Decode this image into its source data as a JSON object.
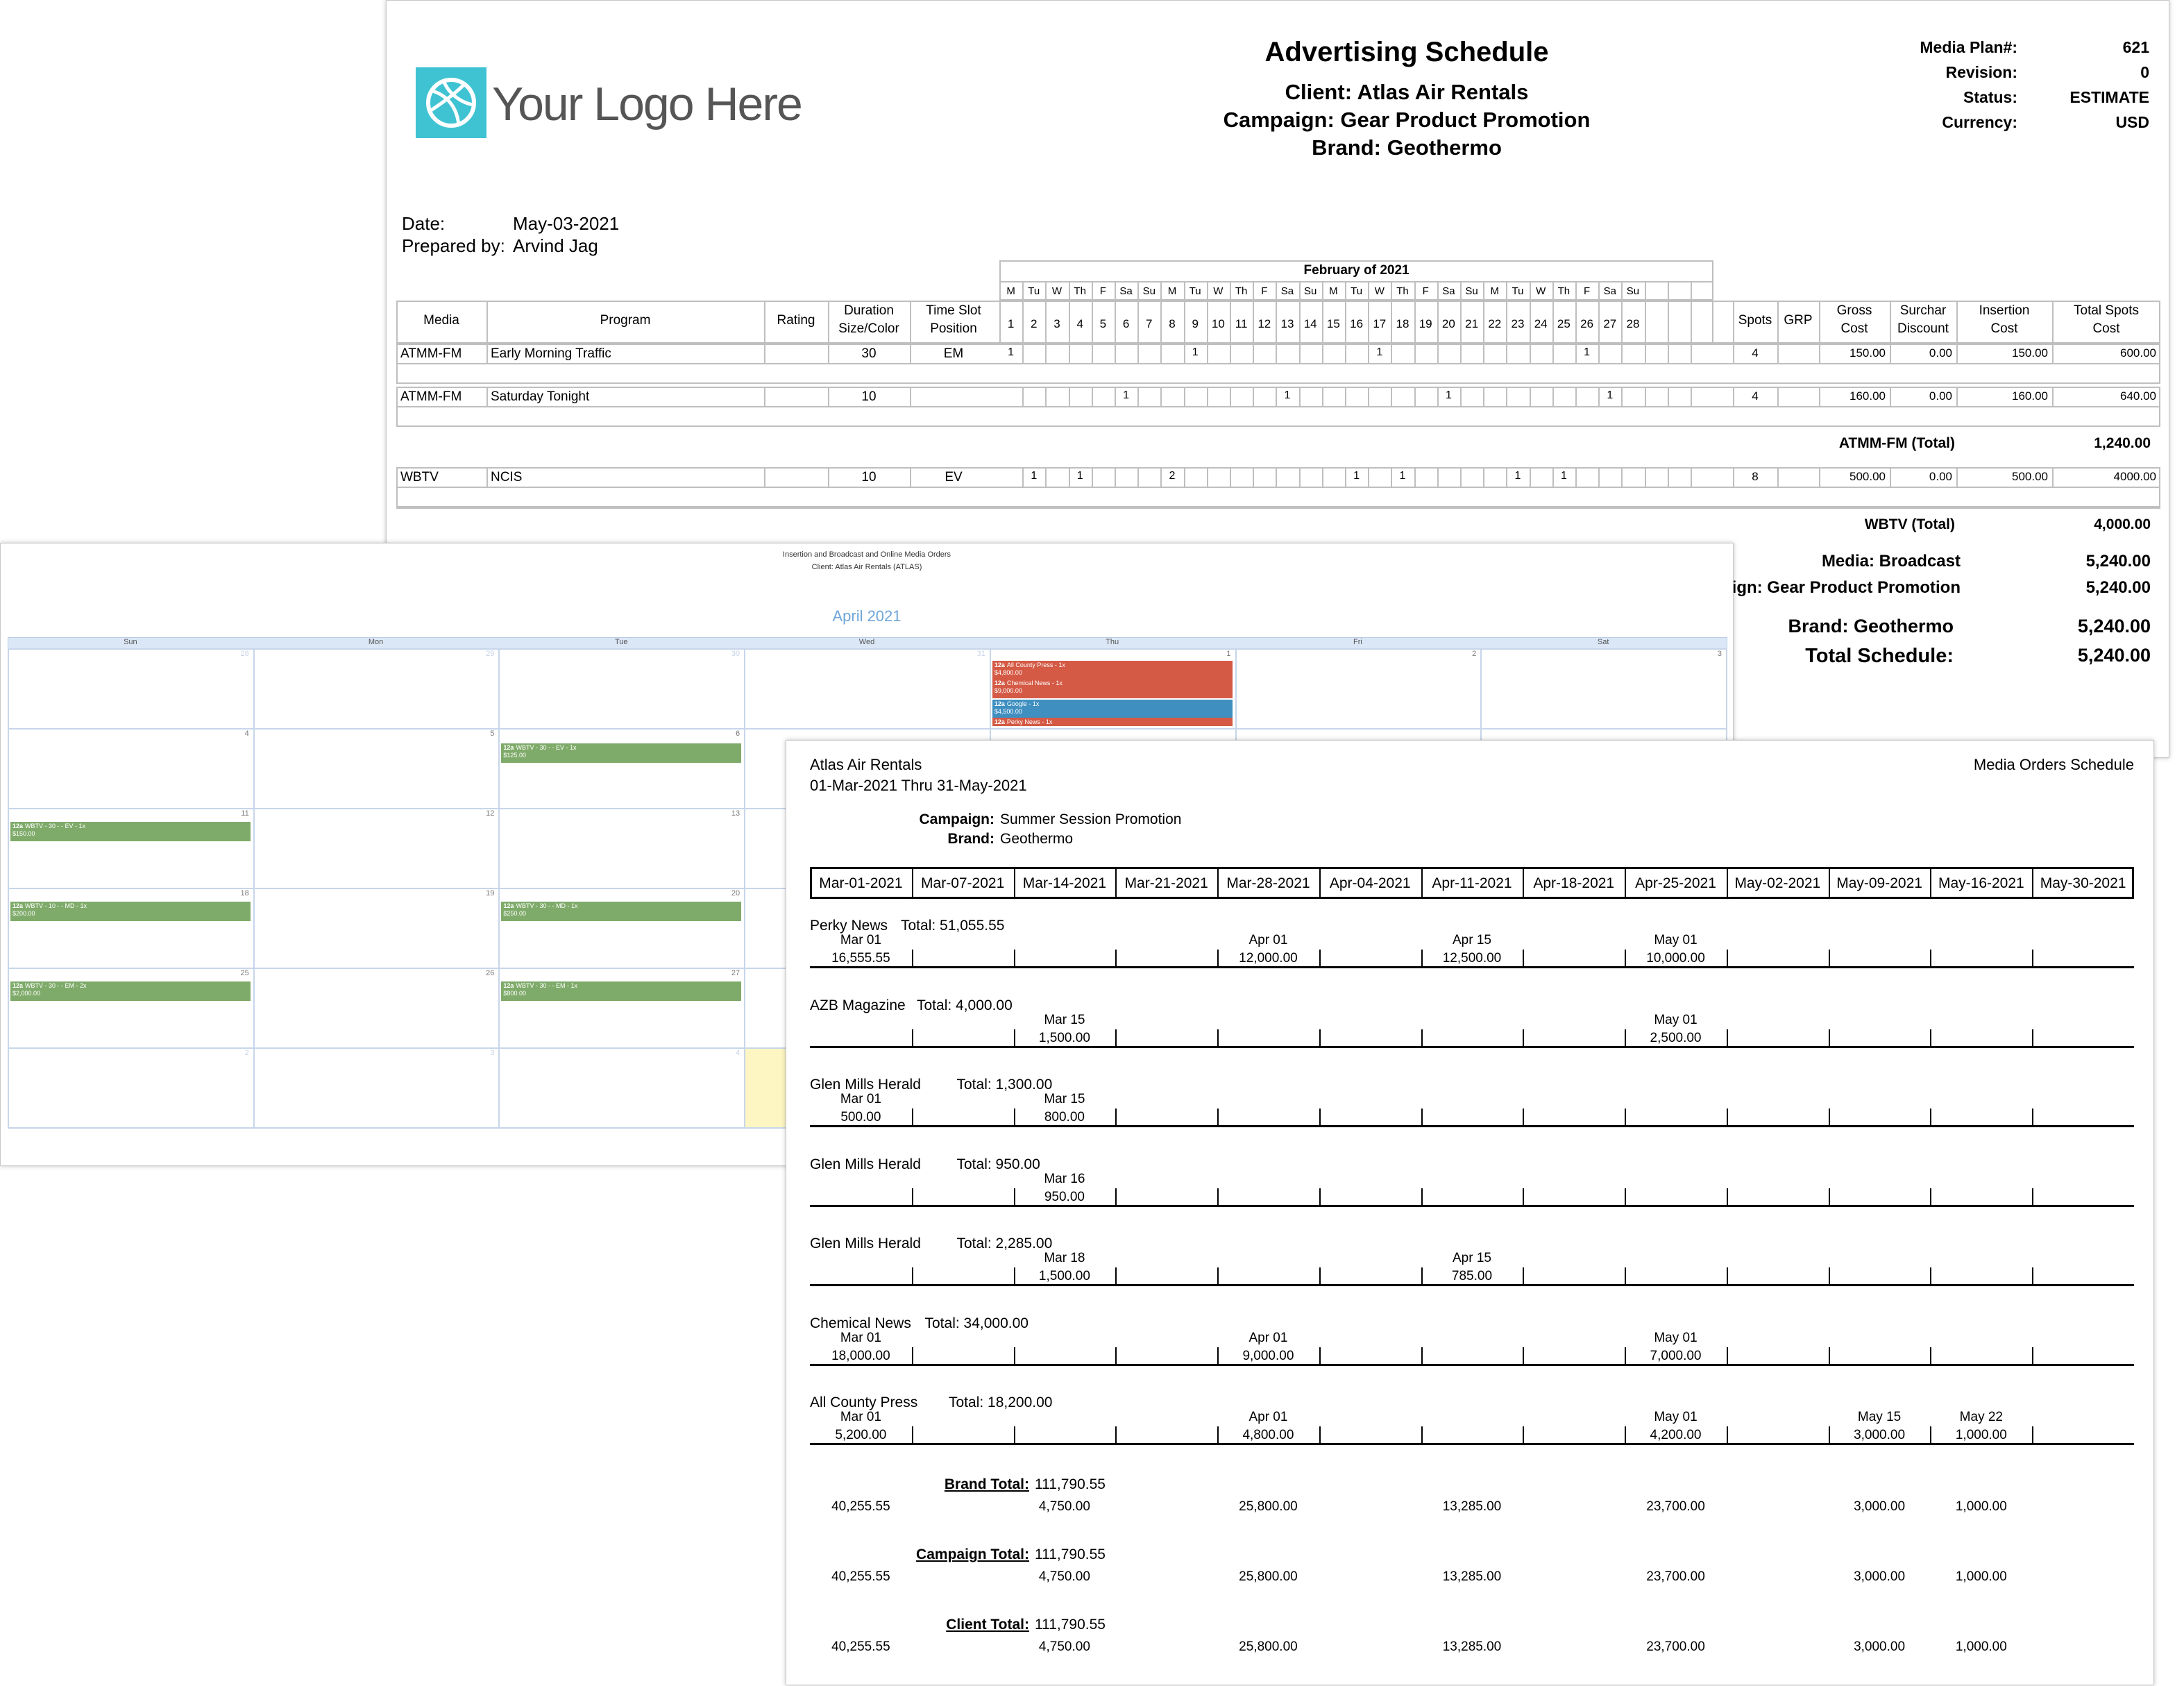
{
  "sched": {
    "title": "Advertising Schedule",
    "client_line": "Client: Atlas Air Rentals",
    "campaign_line": "Campaign: Gear Product Promotion",
    "brand_line": "Brand: Geothermo",
    "logo_text": "Your Logo Here",
    "meta": [
      {
        "label": "Media Plan#:",
        "value": "621"
      },
      {
        "label": "Revision:",
        "value": "0"
      },
      {
        "label": "Status:",
        "value": "ESTIMATE"
      },
      {
        "label": "Currency:",
        "value": "USD"
      }
    ],
    "date_label": "Date:",
    "date_value": "May-03-2021",
    "prepared_label": "Prepared by:",
    "prepared_value": "Arvind Jag",
    "month_label": "February of 2021",
    "weekdays": [
      "M",
      "Tu",
      "W",
      "Th",
      "F",
      "Sa",
      "Su",
      "M",
      "Tu",
      "W",
      "Th",
      "F",
      "Sa",
      "Su",
      "M",
      "Tu",
      "W",
      "Th",
      "F",
      "Sa",
      "Su",
      "M",
      "Tu",
      "W",
      "Th",
      "F",
      "Sa",
      "Su"
    ],
    "days": [
      "1",
      "2",
      "3",
      "4",
      "5",
      "6",
      "7",
      "8",
      "9",
      "10",
      "11",
      "12",
      "13",
      "14",
      "15",
      "16",
      "17",
      "18",
      "19",
      "20",
      "21",
      "22",
      "23",
      "24",
      "25",
      "26",
      "27",
      "28"
    ],
    "headers": {
      "media": "Media",
      "program": "Program",
      "rating": "Rating",
      "duration": [
        "Duration",
        "Size/Color"
      ],
      "timeslot": [
        "Time Slot",
        "Position"
      ],
      "spots": "Spots",
      "grp": "GRP",
      "gross": [
        "Gross",
        "Cost"
      ],
      "surchar": [
        "Surchar",
        "Discount"
      ],
      "insertion": [
        "Insertion",
        "Cost"
      ],
      "total": [
        "Total Spots",
        "Cost"
      ]
    },
    "rows": [
      {
        "media": "ATMM-FM",
        "program": "Early Morning Traffic",
        "duration": "30",
        "slot": "EM",
        "marks": {
          "1": "1",
          "9": "1",
          "17": "1",
          "26": "1"
        },
        "spots": "4",
        "gross": "150.00",
        "surchar": "0.00",
        "insertion": "150.00",
        "total": "600.00"
      },
      {
        "media": "ATMM-FM",
        "program": "Saturday Tonight",
        "duration": "10",
        "slot": "",
        "marks": {
          "6": "1",
          "13": "1",
          "20": "1",
          "27": "1"
        },
        "spots": "4",
        "gross": "160.00",
        "surchar": "0.00",
        "insertion": "160.00",
        "total": "640.00"
      },
      {
        "media": "WBTV",
        "program": "NCIS",
        "duration": "10",
        "slot": "EV",
        "marks": {
          "2": "1",
          "4": "1",
          "8": "2",
          "16": "1",
          "18": "1",
          "23": "1",
          "25": "1"
        },
        "spots": "8",
        "gross": "500.00",
        "surchar": "0.00",
        "insertion": "500.00",
        "total": "4000.00"
      }
    ],
    "atmm_total_label": "ATMM-FM (Total)",
    "atmm_total_value": "1,240.00",
    "wbtv_total_label": "WBTV (Total)",
    "wbtv_total_value": "4,000.00",
    "summary": [
      {
        "label": "Media: Broadcast",
        "value": "5,240.00"
      },
      {
        "label": "Campaign: Gear Product Promotion",
        "value": "5,240.00"
      },
      {
        "label": "Brand: Geothermo",
        "value": "5,240.00"
      },
      {
        "label": "Total Schedule:",
        "value": "5,240.00"
      }
    ]
  },
  "cal": {
    "title1": "Insertion and Broadcast and Online Media Orders",
    "title2": "Client: Atlas Air Rentals (ATLAS)",
    "month": "April 2021",
    "dow": [
      "Sun",
      "Mon",
      "Tue",
      "Wed",
      "Thu",
      "Fri",
      "Sat"
    ],
    "weeks": [
      [
        "28",
        "29",
        "30",
        "31",
        "1",
        "2",
        "3"
      ],
      [
        "4",
        "5",
        "6",
        "",
        "",
        "",
        ""
      ],
      [
        "11",
        "12",
        "13",
        "",
        "",
        "",
        ""
      ],
      [
        "18",
        "19",
        "20",
        "",
        "",
        "",
        ""
      ],
      [
        "25",
        "26",
        "27",
        "",
        "",
        "",
        ""
      ],
      [
        "2",
        "3",
        "4",
        "",
        "",
        "",
        ""
      ]
    ],
    "events": [
      {
        "time": "12a",
        "text": "All County Press - 1x",
        "amount": "$4,800.00",
        "color": "#d45a45"
      },
      {
        "time": "12a",
        "text": "Chemical News - 1x",
        "amount": "$9,000.00",
        "color": "#d45a45"
      },
      {
        "time": "12a",
        "text": "Google - 1x",
        "amount": "$4,500.00",
        "color": "#3f8fc0"
      },
      {
        "time": "12a",
        "text": "Perky News - 1x",
        "amount": "",
        "color": "#d45a45"
      },
      {
        "time": "12a",
        "text": "WBTV - 30 - - EV - 1x",
        "amount": "$125.00",
        "color": "#7fab6a"
      },
      {
        "time": "12a",
        "text": "WBTV - 30 - - EV - 1x",
        "amount": "$150.00",
        "color": "#7fab6a"
      },
      {
        "time": "12a",
        "text": "WBTV - 10 - - MD - 1x",
        "amount": "$200.00",
        "color": "#7fab6a"
      },
      {
        "time": "12a",
        "text": "WBTV - 30 - - MD - 1x",
        "amount": "$250.00",
        "color": "#7fab6a"
      },
      {
        "time": "12a",
        "text": "WBTV - 30 - - EM - 2x",
        "amount": "$2,000.00",
        "color": "#7fab6a"
      },
      {
        "time": "12a",
        "text": "WBTV - 30 - - EM - 1x",
        "amount": "$800.00",
        "color": "#7fab6a"
      }
    ]
  },
  "mos": {
    "company": "Atlas Air Rentals",
    "range": "01-Mar-2021 Thru 31-May-2021",
    "report_title": "Media Orders Schedule",
    "campaign_label": "Campaign:",
    "campaign_value": "Summer Session Promotion",
    "brand_label": "Brand:",
    "brand_value": "Geothermo",
    "weeks": [
      "Mar-01-2021",
      "Mar-07-2021",
      "Mar-14-2021",
      "Mar-21-2021",
      "Mar-28-2021",
      "Apr-04-2021",
      "Apr-11-2021",
      "Apr-18-2021",
      "Apr-25-2021",
      "May-02-2021",
      "May-09-2021",
      "May-16-2021",
      "May-30-2021"
    ],
    "groups": [
      {
        "name": "Perky News",
        "total": "Total: 51,055.55",
        "entries": [
          {
            "col": 0,
            "date": "Mar 01",
            "amount": "16,555.55"
          },
          {
            "col": 4,
            "date": "Apr 01",
            "amount": "12,000.00"
          },
          {
            "col": 6,
            "date": "Apr 15",
            "amount": "12,500.00"
          },
          {
            "col": 8,
            "date": "May 01",
            "amount": "10,000.00"
          }
        ]
      },
      {
        "name": "AZB Magazine",
        "total": "Total: 4,000.00",
        "entries": [
          {
            "col": 2,
            "date": "Mar 15",
            "amount": "1,500.00"
          },
          {
            "col": 8,
            "date": "May 01",
            "amount": "2,500.00"
          }
        ]
      },
      {
        "name": "Glen Mills Herald",
        "total": "Total: 1,300.00",
        "entries": [
          {
            "col": 0,
            "date": "Mar 01",
            "amount": "500.00"
          },
          {
            "col": 2,
            "date": "Mar 15",
            "amount": "800.00"
          }
        ]
      },
      {
        "name": "Glen Mills Herald",
        "total": "Total: 950.00",
        "entries": [
          {
            "col": 2,
            "date": "Mar 16",
            "amount": "950.00"
          }
        ]
      },
      {
        "name": "Glen Mills Herald",
        "total": "Total: 2,285.00",
        "entries": [
          {
            "col": 2,
            "date": "Mar 18",
            "amount": "1,500.00"
          },
          {
            "col": 6,
            "date": "Apr 15",
            "amount": "785.00"
          }
        ]
      },
      {
        "name": "Chemical News",
        "total": "Total: 34,000.00",
        "entries": [
          {
            "col": 0,
            "date": "Mar 01",
            "amount": "18,000.00"
          },
          {
            "col": 4,
            "date": "Apr 01",
            "amount": "9,000.00"
          },
          {
            "col": 8,
            "date": "May 01",
            "amount": "7,000.00"
          }
        ]
      },
      {
        "name": "All County Press",
        "total": "Total: 18,200.00",
        "entries": [
          {
            "col": 0,
            "date": "Mar 01",
            "amount": "5,200.00"
          },
          {
            "col": 4,
            "date": "Apr 01",
            "amount": "4,800.00"
          },
          {
            "col": 8,
            "date": "May 01",
            "amount": "4,200.00"
          },
          {
            "col": 10,
            "date": "May 15",
            "amount": "3,000.00"
          },
          {
            "col": 11,
            "date": "May 22",
            "amount": "1,000.00"
          }
        ]
      }
    ],
    "totals": [
      {
        "label": "Brand Total:",
        "value": "111,790.55"
      },
      {
        "label": "Campaign Total:",
        "value": "111,790.55"
      },
      {
        "label": "Client Total:",
        "value": "111,790.55"
      }
    ],
    "total_values": [
      {
        "col": 0,
        "v": "40,255.55"
      },
      {
        "col": 2,
        "v": "4,750.00"
      },
      {
        "col": 4,
        "v": "25,800.00"
      },
      {
        "col": 6,
        "v": "13,285.00"
      },
      {
        "col": 8,
        "v": "23,700.00"
      },
      {
        "col": 10,
        "v": "3,000.00"
      },
      {
        "col": 11,
        "v": "1,000.00"
      }
    ]
  }
}
